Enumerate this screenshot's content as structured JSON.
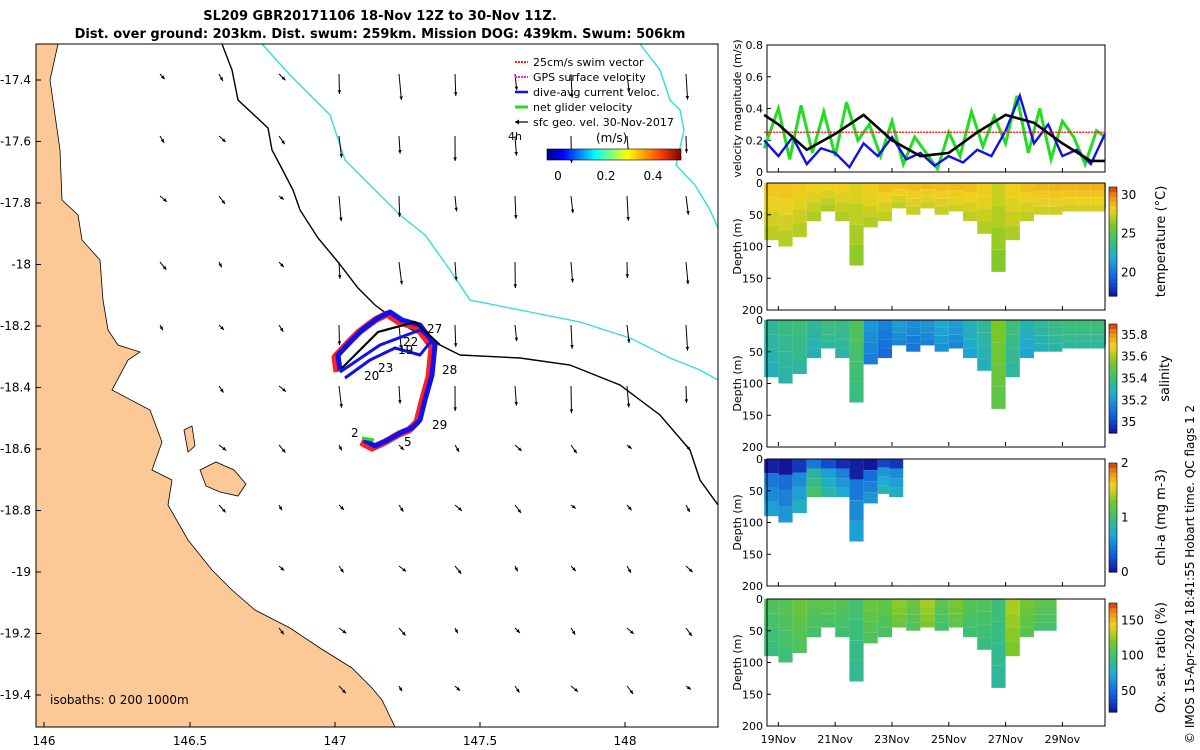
{
  "title_line1": "SL209 GBR20171106 18-Nov 12Z to 30-Nov 11Z.",
  "title_line2": "Dist. over ground: 203km. Dist. swum: 259km. Mission DOG: 439km. Swum: 506km",
  "copyright": "© IMOS 15-Apr-2024 18:41:55 Hobart time. QC flags 1  2",
  "colors": {
    "land": "#fbc896",
    "coast": "#000000",
    "isobath200": "#000000",
    "isobath1000": "#33dddd",
    "swim": "#ff2020",
    "gps": "#ee22ee",
    "current": "#1010ee",
    "netglider": "#22dd22",
    "sfc": "#000000"
  },
  "map": {
    "lon_ticks": [
      "146",
      "146.5",
      "147",
      "147.5",
      "148"
    ],
    "lat_ticks": [
      "-17.4",
      "-17.6",
      "-17.8",
      "-18",
      "-18.2",
      "-18.4",
      "-18.6",
      "-18.8",
      "-19",
      "-19.2",
      "-19.4"
    ],
    "isobath_label": "isobaths: 0   200  1000m",
    "legend": [
      "25cm/s swim vector",
      "GPS surface velocity",
      "dive-avg current veloc.",
      "net glider velocity",
      "sfc geo. vel. 30-Nov-2017"
    ],
    "legend_note": "4h",
    "colorbar_label": "(m/s)",
    "colorbar_ticks": [
      "0",
      "0.2",
      "0.4"
    ],
    "day_labels": [
      "27",
      "22",
      "19",
      "28",
      "23",
      "20",
      "29",
      "2",
      "5"
    ]
  },
  "chart_data": [
    {
      "type": "line",
      "title": "",
      "ylabel": "velocity magnitude (m/s)",
      "ylim": [
        0,
        0.8
      ],
      "yticks": [
        "0",
        "0.2",
        "0.4",
        "0.6",
        "0.8"
      ],
      "x_range_days": [
        18.5,
        30.5
      ],
      "series": [
        {
          "name": "sfc geo. vel.",
          "x": [
            18.5,
            19,
            20,
            21,
            22,
            23,
            24,
            25,
            26,
            27,
            28,
            29,
            30,
            30.5
          ],
          "values": [
            0.36,
            0.3,
            0.14,
            0.24,
            0.36,
            0.2,
            0.1,
            0.12,
            0.25,
            0.36,
            0.31,
            0.18,
            0.07,
            0.07
          ]
        },
        {
          "name": "25cm/s swim vector",
          "x": [
            18.5,
            30.5
          ],
          "values": [
            0.25,
            0.25
          ]
        },
        {
          "name": "net glider velocity",
          "x": [
            18.5,
            19,
            19.4,
            19.8,
            20.2,
            20.6,
            21,
            21.4,
            21.8,
            22.2,
            22.6,
            23,
            23.4,
            23.8,
            24.2,
            24.6,
            25,
            25.4,
            25.8,
            26.2,
            26.6,
            27,
            27.4,
            27.8,
            28.2,
            28.6,
            29,
            29.4,
            29.8,
            30.2,
            30.5
          ],
          "values": [
            0.15,
            0.4,
            0.08,
            0.42,
            0.12,
            0.38,
            0.1,
            0.44,
            0.2,
            0.3,
            0.1,
            0.32,
            0.05,
            0.22,
            0.12,
            0.02,
            0.25,
            0.1,
            0.38,
            0.16,
            0.35,
            0.18,
            0.48,
            0.12,
            0.4,
            0.08,
            0.32,
            0.22,
            0.05,
            0.26,
            0.22
          ]
        },
        {
          "name": "dive-avg current veloc.",
          "x": [
            18.5,
            19,
            19.5,
            20,
            20.5,
            21,
            21.5,
            22,
            22.5,
            23,
            23.5,
            24,
            24.5,
            25,
            25.5,
            26,
            26.5,
            27,
            27.5,
            28,
            28.5,
            29,
            29.5,
            30,
            30.5
          ],
          "values": [
            0.2,
            0.1,
            0.22,
            0.05,
            0.15,
            0.12,
            0.03,
            0.18,
            0.1,
            0.22,
            0.08,
            0.12,
            0.04,
            0.1,
            0.06,
            0.14,
            0.1,
            0.26,
            0.48,
            0.18,
            0.3,
            0.1,
            0.14,
            0.05,
            0.24
          ]
        }
      ]
    },
    {
      "type": "heatmap",
      "ylabel": "Depth (m)",
      "cbar_label": "temperature (°C)",
      "cbar_ticks": [
        "20",
        "25",
        "30"
      ],
      "clim": [
        17,
        31
      ],
      "depth_ticks": [
        "0",
        "50",
        "100",
        "150",
        "200"
      ],
      "ylim": [
        0,
        200
      ],
      "dives": [
        {
          "day": 18.5,
          "maxd": 90,
          "v": 28.5
        },
        {
          "day": 19,
          "maxd": 100,
          "v": 28.5
        },
        {
          "day": 19.5,
          "maxd": 85,
          "v": 28.4
        },
        {
          "day": 20,
          "maxd": 60,
          "v": 28.3
        },
        {
          "day": 20.5,
          "maxd": 45,
          "v": 28.2
        },
        {
          "day": 21,
          "maxd": 60,
          "v": 28.3
        },
        {
          "day": 21.5,
          "maxd": 130,
          "v": 27.8
        },
        {
          "day": 22,
          "maxd": 70,
          "v": 28.4
        },
        {
          "day": 22.5,
          "maxd": 60,
          "v": 28.6
        },
        {
          "day": 23,
          "maxd": 40,
          "v": 28.6
        },
        {
          "day": 23.5,
          "maxd": 50,
          "v": 28.7
        },
        {
          "day": 24,
          "maxd": 40,
          "v": 28.8
        },
        {
          "day": 24.5,
          "maxd": 50,
          "v": 28.7
        },
        {
          "day": 25,
          "maxd": 45,
          "v": 28.8
        },
        {
          "day": 25.5,
          "maxd": 60,
          "v": 28.6
        },
        {
          "day": 26,
          "maxd": 80,
          "v": 28.4
        },
        {
          "day": 26.5,
          "maxd": 140,
          "v": 27.5
        },
        {
          "day": 27,
          "maxd": 90,
          "v": 28.3
        },
        {
          "day": 27.5,
          "maxd": 60,
          "v": 28.6
        },
        {
          "day": 28,
          "maxd": 50,
          "v": 28.8
        },
        {
          "day": 28.5,
          "maxd": 50,
          "v": 28.9
        },
        {
          "day": 29,
          "maxd": 45,
          "v": 28.9
        },
        {
          "day": 29.5,
          "maxd": 45,
          "v": 29.0
        },
        {
          "day": 30,
          "maxd": 45,
          "v": 29.0
        },
        {
          "day": 30.5,
          "maxd": 40,
          "v": 29.0
        }
      ]
    },
    {
      "type": "heatmap",
      "ylabel": "Depth (m)",
      "cbar_label": "salinity",
      "cbar_ticks": [
        "35",
        "35.2",
        "35.4",
        "35.6",
        "35.8"
      ],
      "clim": [
        34.9,
        35.9
      ],
      "depth_ticks": [
        "0",
        "50",
        "100",
        "150",
        "200"
      ],
      "ylim": [
        0,
        200
      ],
      "dives": [
        {
          "day": 18.5,
          "maxd": 90,
          "v": 35.35
        },
        {
          "day": 19,
          "maxd": 100,
          "v": 35.38
        },
        {
          "day": 19.5,
          "maxd": 85,
          "v": 35.4
        },
        {
          "day": 20,
          "maxd": 60,
          "v": 35.35
        },
        {
          "day": 20.5,
          "maxd": 45,
          "v": 35.4
        },
        {
          "day": 21,
          "maxd": 60,
          "v": 35.38
        },
        {
          "day": 21.5,
          "maxd": 130,
          "v": 35.45
        },
        {
          "day": 22,
          "maxd": 70,
          "v": 35.2
        },
        {
          "day": 22.5,
          "maxd": 60,
          "v": 35.15
        },
        {
          "day": 23,
          "maxd": 40,
          "v": 35.22
        },
        {
          "day": 23.5,
          "maxd": 50,
          "v": 35.18
        },
        {
          "day": 24,
          "maxd": 40,
          "v": 35.2
        },
        {
          "day": 24.5,
          "maxd": 50,
          "v": 35.25
        },
        {
          "day": 25,
          "maxd": 45,
          "v": 35.22
        },
        {
          "day": 25.5,
          "maxd": 60,
          "v": 35.3
        },
        {
          "day": 26,
          "maxd": 80,
          "v": 35.35
        },
        {
          "day": 26.5,
          "maxd": 140,
          "v": 35.55
        },
        {
          "day": 27,
          "maxd": 90,
          "v": 35.4
        },
        {
          "day": 27.5,
          "maxd": 60,
          "v": 35.3
        },
        {
          "day": 28,
          "maxd": 50,
          "v": 35.35
        },
        {
          "day": 28.5,
          "maxd": 50,
          "v": 35.38
        },
        {
          "day": 29,
          "maxd": 45,
          "v": 35.4
        },
        {
          "day": 29.5,
          "maxd": 45,
          "v": 35.4
        },
        {
          "day": 30,
          "maxd": 45,
          "v": 35.4
        },
        {
          "day": 30.5,
          "maxd": 40,
          "v": 35.4
        }
      ]
    },
    {
      "type": "heatmap",
      "ylabel": "Depth (m)",
      "cbar_label": "chl-a (mg m-3)",
      "cbar_ticks": [
        "0",
        "1",
        "2"
      ],
      "clim": [
        0,
        2
      ],
      "depth_ticks": [
        "0",
        "50",
        "100",
        "150",
        "200"
      ],
      "ylim": [
        0,
        200
      ],
      "dives": [
        {
          "day": 18.5,
          "maxd": 90,
          "v": 0.35
        },
        {
          "day": 19,
          "maxd": 100,
          "v": 0.3
        },
        {
          "day": 19.5,
          "maxd": 85,
          "v": 0.45
        },
        {
          "day": 20,
          "maxd": 60,
          "v": 0.75
        },
        {
          "day": 20.5,
          "maxd": 60,
          "v": 0.55
        },
        {
          "day": 21,
          "maxd": 60,
          "v": 0.4
        },
        {
          "day": 21.5,
          "maxd": 130,
          "v": 0.35
        },
        {
          "day": 22,
          "maxd": 70,
          "v": 0.3
        },
        {
          "day": 22.5,
          "maxd": 55,
          "v": 0.5
        },
        {
          "day": 22.9,
          "maxd": 60,
          "v": 0.45
        }
      ]
    },
    {
      "type": "heatmap",
      "ylabel": "Depth (m)",
      "cbar_label": "Ox. sat. ratio (%)",
      "cbar_ticks": [
        "50",
        "100",
        "150"
      ],
      "clim": [
        20,
        175
      ],
      "depth_ticks": [
        "0",
        "50",
        "100",
        "150",
        "200"
      ],
      "ylim": [
        0,
        200
      ],
      "dives": [
        {
          "day": 18.5,
          "maxd": 90,
          "v": 105
        },
        {
          "day": 19,
          "maxd": 100,
          "v": 108
        },
        {
          "day": 19.5,
          "maxd": 85,
          "v": 115
        },
        {
          "day": 20,
          "maxd": 60,
          "v": 110
        },
        {
          "day": 20.5,
          "maxd": 45,
          "v": 112
        },
        {
          "day": 21,
          "maxd": 60,
          "v": 108
        },
        {
          "day": 21.5,
          "maxd": 130,
          "v": 100
        },
        {
          "day": 22,
          "maxd": 70,
          "v": 115
        },
        {
          "day": 22.5,
          "maxd": 60,
          "v": 112
        },
        {
          "day": 23,
          "maxd": 45,
          "v": 125
        },
        {
          "day": 23.5,
          "maxd": 50,
          "v": 115
        },
        {
          "day": 24,
          "maxd": 45,
          "v": 130
        },
        {
          "day": 24.5,
          "maxd": 50,
          "v": 110
        },
        {
          "day": 25,
          "maxd": 45,
          "v": 120
        },
        {
          "day": 25.5,
          "maxd": 60,
          "v": 108
        },
        {
          "day": 26,
          "maxd": 80,
          "v": 105
        },
        {
          "day": 26.5,
          "maxd": 140,
          "v": 98
        },
        {
          "day": 27,
          "maxd": 90,
          "v": 130
        },
        {
          "day": 27.5,
          "maxd": 60,
          "v": 118
        },
        {
          "day": 28,
          "maxd": 50,
          "v": 112
        },
        {
          "day": 28.3,
          "maxd": 50,
          "v": 110
        }
      ]
    }
  ],
  "time_axis": {
    "ticks": [
      "19Nov",
      "21Nov",
      "23Nov",
      "25Nov",
      "27Nov",
      "29Nov"
    ]
  }
}
